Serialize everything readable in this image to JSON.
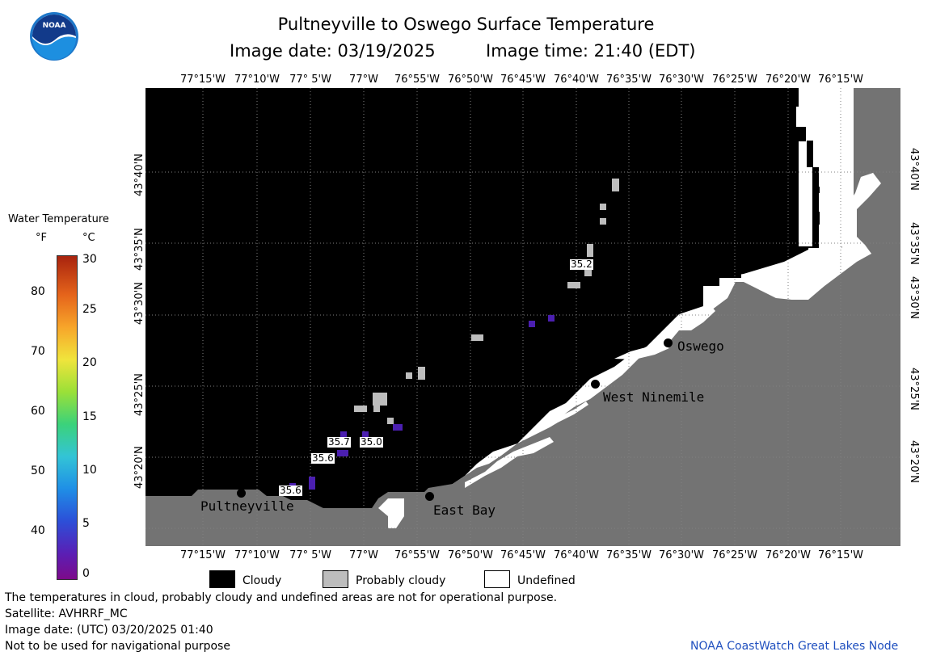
{
  "header": {
    "title": "Pultneyville to Oswego Surface Temperature",
    "subtitle_date": "Image date: 03/19/2025",
    "subtitle_time": "Image time: 21:40 (EDT)"
  },
  "logo": {
    "text": "NOAA"
  },
  "longitude_labels": [
    "77°15'W",
    "77°10'W",
    "77° 5'W",
    "77°W",
    "76°55'W",
    "76°50'W",
    "76°45'W",
    "76°40'W",
    "76°35'W",
    "76°30'W",
    "76°25'W",
    "76°20'W",
    "76°15'W"
  ],
  "latitude_labels": [
    "43°40'N",
    "43°35'N",
    "43°30'N",
    "43°25'N",
    "43°20'N"
  ],
  "scale": {
    "title": "Water Temperature",
    "unit_f": "°F",
    "unit_c": "°C",
    "f_ticks": [
      "80",
      "70",
      "60",
      "50",
      "40"
    ],
    "c_ticks": [
      "30",
      "25",
      "20",
      "15",
      "10",
      "5",
      "0"
    ]
  },
  "places": {
    "pultneyville": "Pultneyville",
    "east_bay": "East Bay",
    "west_ninemile": "West Ninemile",
    "oswego": "Oswego"
  },
  "temperature_labels": [
    "35.2",
    "35.7",
    "35.0",
    "35.6",
    "35.6"
  ],
  "legend": {
    "cloudy": "Cloudy",
    "probably_cloudy": "Probably cloudy",
    "undefined": "Undefined"
  },
  "colors": {
    "cloud": "#000000",
    "land": "#737373",
    "probably_cloudy": "#bdbdbd",
    "undefined": "#ffffff",
    "cold_pixel": "#4b1fb0",
    "credit": "#1f4fbf"
  },
  "footer": {
    "disclaimer": "The temperatures in cloud, probably cloudy and undefined areas are not for operational purpose.",
    "satellite": "Satellite: AVHRRF_MC",
    "utc_date": "Image date: (UTC) 03/20/2025  01:40",
    "nav": "Not to be used for navigational purpose",
    "credit": "NOAA CoastWatch Great Lakes Node"
  }
}
